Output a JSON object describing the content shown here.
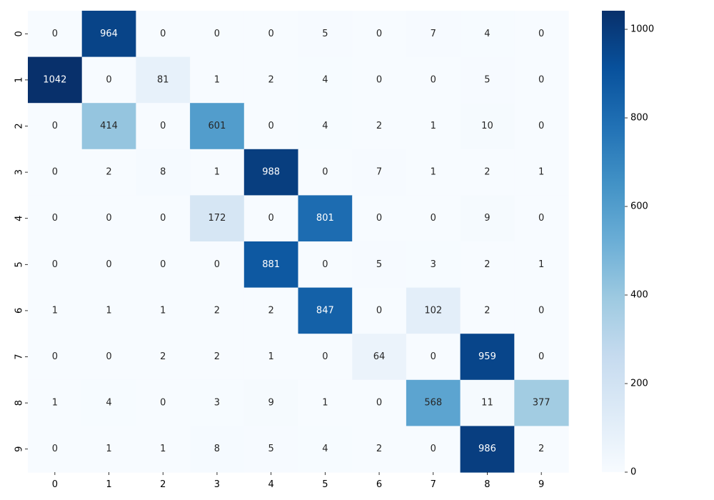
{
  "chart_data": {
    "type": "heatmap",
    "title": "",
    "xlabel": "",
    "ylabel": "",
    "x_categories": [
      "0",
      "1",
      "2",
      "3",
      "4",
      "5",
      "6",
      "7",
      "8",
      "9"
    ],
    "y_categories": [
      "0",
      "1",
      "2",
      "3",
      "4",
      "5",
      "6",
      "7",
      "8",
      "9"
    ],
    "values": [
      [
        0,
        964,
        0,
        0,
        0,
        5,
        0,
        7,
        4,
        0
      ],
      [
        1042,
        0,
        81,
        1,
        2,
        4,
        0,
        0,
        5,
        0
      ],
      [
        0,
        414,
        0,
        601,
        0,
        4,
        2,
        1,
        10,
        0
      ],
      [
        0,
        2,
        8,
        1,
        988,
        0,
        7,
        1,
        2,
        1
      ],
      [
        0,
        0,
        0,
        172,
        0,
        801,
        0,
        0,
        9,
        0
      ],
      [
        0,
        0,
        0,
        0,
        881,
        0,
        5,
        3,
        2,
        1
      ],
      [
        1,
        1,
        1,
        2,
        2,
        847,
        0,
        102,
        2,
        0
      ],
      [
        0,
        0,
        2,
        2,
        1,
        0,
        64,
        0,
        959,
        0
      ],
      [
        1,
        4,
        0,
        3,
        9,
        1,
        0,
        568,
        11,
        377
      ],
      [
        0,
        1,
        1,
        8,
        5,
        4,
        2,
        0,
        986,
        2
      ]
    ],
    "colormap": "Blues",
    "vmin": 0,
    "vmax": 1042,
    "colorbar": {
      "ticks": [
        0,
        200,
        400,
        600,
        800,
        1000
      ],
      "tick_labels": [
        "0",
        "200",
        "400",
        "600",
        "800",
        "1000"
      ]
    },
    "annotate_cells": true,
    "grid": false
  }
}
